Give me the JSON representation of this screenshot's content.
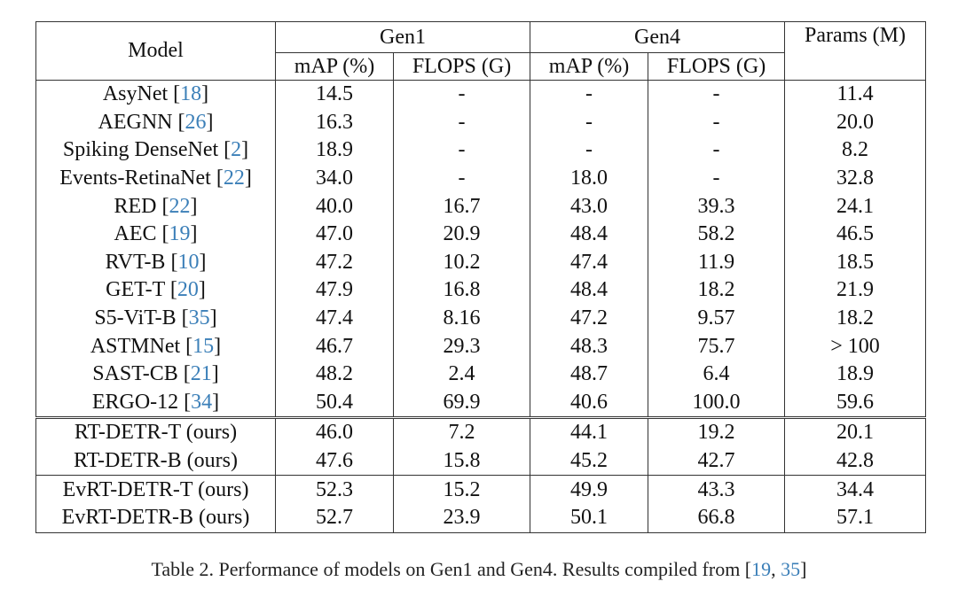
{
  "table": {
    "headers": {
      "model": "Model",
      "gen1": "Gen1",
      "gen4": "Gen4",
      "params": "Params (M)",
      "map": "mAP (%)",
      "flops": "FLOPS (G)"
    },
    "baseline_rows": [
      {
        "name": "AsyNet",
        "ref": "18",
        "gen1_map": "14.5",
        "gen1_flops": "-",
        "gen4_map": "-",
        "gen4_flops": "-",
        "params": "11.4"
      },
      {
        "name": "AEGNN",
        "ref": "26",
        "gen1_map": "16.3",
        "gen1_flops": "-",
        "gen4_map": "-",
        "gen4_flops": "-",
        "params": "20.0"
      },
      {
        "name": "Spiking DenseNet",
        "ref": "2",
        "gen1_map": "18.9",
        "gen1_flops": "-",
        "gen4_map": "-",
        "gen4_flops": "-",
        "params": "8.2"
      },
      {
        "name": "Events-RetinaNet",
        "ref": "22",
        "gen1_map": "34.0",
        "gen1_flops": "-",
        "gen4_map": "18.0",
        "gen4_flops": "-",
        "params": "32.8"
      },
      {
        "name": "RED",
        "ref": "22",
        "gen1_map": "40.0",
        "gen1_flops": "16.7",
        "gen4_map": "43.0",
        "gen4_flops": "39.3",
        "params": "24.1"
      },
      {
        "name": "AEC",
        "ref": "19",
        "gen1_map": "47.0",
        "gen1_flops": "20.9",
        "gen4_map": "48.4",
        "gen4_flops": "58.2",
        "params": "46.5"
      },
      {
        "name": "RVT-B",
        "ref": "10",
        "gen1_map": "47.2",
        "gen1_flops": "10.2",
        "gen4_map": "47.4",
        "gen4_flops": "11.9",
        "params": "18.5"
      },
      {
        "name": "GET-T",
        "ref": "20",
        "gen1_map": "47.9",
        "gen1_flops": "16.8",
        "gen4_map": "48.4",
        "gen4_flops": "18.2",
        "params": "21.9"
      },
      {
        "name": "S5-ViT-B",
        "ref": "35",
        "gen1_map": "47.4",
        "gen1_flops": "8.16",
        "gen4_map": "47.2",
        "gen4_flops": "9.57",
        "params": "18.2"
      },
      {
        "name": "ASTMNet",
        "ref": "15",
        "gen1_map": "46.7",
        "gen1_flops": "29.3",
        "gen4_map": "48.3",
        "gen4_flops": "75.7",
        "params": "> 100"
      },
      {
        "name": "SAST-CB",
        "ref": "21",
        "gen1_map": "48.2",
        "gen1_flops": "2.4",
        "gen4_map": "48.7",
        "gen4_flops": "6.4",
        "params": "18.9"
      },
      {
        "name": "ERGO-12",
        "ref": "34",
        "gen1_map": "50.4",
        "gen1_flops": "69.9",
        "gen4_map": "40.6",
        "gen4_flops": "100.0",
        "params": "59.6"
      }
    ],
    "ours_rows": [
      {
        "name": "RT-DETR-T (ours)",
        "gen1_map": "46.0",
        "gen1_flops": "7.2",
        "gen4_map": "44.1",
        "gen4_flops": "19.2",
        "params": "20.1"
      },
      {
        "name": "RT-DETR-B (ours)",
        "gen1_map": "47.6",
        "gen1_flops": "15.8",
        "gen4_map": "45.2",
        "gen4_flops": "42.7",
        "params": "42.8"
      },
      {
        "name": "EvRT-DETR-T (ours)",
        "gen1_map": "52.3",
        "gen1_flops": "15.2",
        "gen4_map": "49.9",
        "gen4_flops": "43.3",
        "params": "34.4"
      },
      {
        "name": "EvRT-DETR-B (ours)",
        "gen1_map": "52.7",
        "gen1_flops": "23.9",
        "gen4_map": "50.1",
        "gen4_flops": "66.8",
        "params": "57.1"
      }
    ]
  },
  "caption": {
    "text": "Table 2. Performance of models on Gen1 and Gen4. Results compiled from [",
    "ref1": "19",
    "sep": ", ",
    "ref2": "35",
    "close": "]"
  }
}
